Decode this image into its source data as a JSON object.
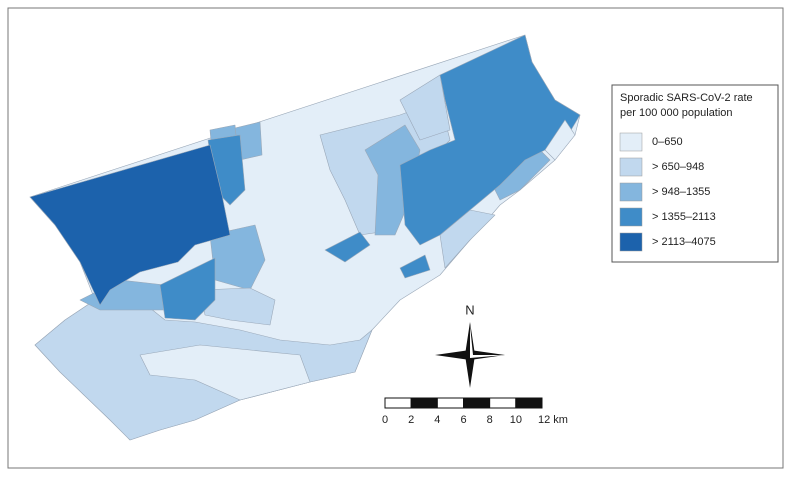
{
  "legend": {
    "title_lines": [
      "Sporadic SARS-CoV-2 rate",
      "per 100 000 population"
    ],
    "items": [
      {
        "label": "0–650",
        "color": "#e3eef8"
      },
      {
        "label": "> 650–948",
        "color": "#c1d8ee"
      },
      {
        "label": "> 948–1355",
        "color": "#84b6de"
      },
      {
        "label": "> 1355–2113",
        "color": "#3f8cc8"
      },
      {
        "label": "> 2113–4075",
        "color": "#1c62ac"
      }
    ]
  },
  "compass": {
    "label": "N"
  },
  "scale_bar": {
    "ticks": [
      "0",
      "2",
      "4",
      "6",
      "8",
      "10",
      "12 km"
    ]
  }
}
